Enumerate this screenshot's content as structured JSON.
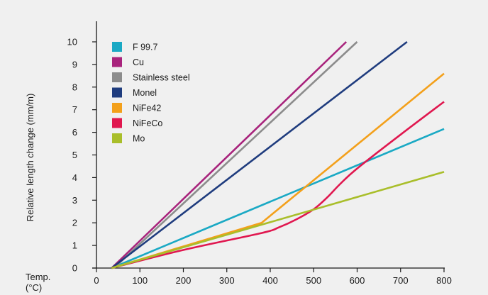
{
  "chart_data": {
    "type": "line",
    "title": "",
    "xlabel": "Temp. (°C)",
    "xlabel_lines": [
      "Temp.",
      "(°C)"
    ],
    "ylabel": "Relative length change (mm/m)",
    "xlim": [
      0,
      800
    ],
    "ylim": [
      0,
      10
    ],
    "xticks": [
      0,
      100,
      200,
      300,
      400,
      500,
      600,
      700,
      800
    ],
    "yticks": [
      0,
      1,
      2,
      3,
      4,
      5,
      6,
      7,
      8,
      9,
      10
    ],
    "grid": false,
    "legend_position": "top-left",
    "series": [
      {
        "name": "F 99.7",
        "color": "#1aa9c4",
        "points": [
          [
            35,
            0
          ],
          [
            800,
            6.15
          ]
        ]
      },
      {
        "name": "Cu",
        "color": "#a8237c",
        "points": [
          [
            35,
            0
          ],
          [
            575,
            10
          ]
        ]
      },
      {
        "name": "Stainless steel",
        "color": "#8c8c8c",
        "points": [
          [
            40,
            0
          ],
          [
            600,
            10
          ]
        ]
      },
      {
        "name": "Monel",
        "color": "#1f3c7e",
        "points": [
          [
            35,
            0
          ],
          [
            715,
            10
          ]
        ]
      },
      {
        "name": "NiFe42",
        "color": "#f3a01b",
        "points": [
          [
            35,
            0
          ],
          [
            380,
            2.0
          ],
          [
            800,
            8.6
          ]
        ]
      },
      {
        "name": "NiFeCo",
        "color": "#e0174f",
        "points": [
          [
            35,
            0
          ],
          [
            200,
            0.8
          ],
          [
            380,
            1.55
          ],
          [
            420,
            1.8
          ],
          [
            460,
            2.15
          ],
          [
            500,
            2.6
          ],
          [
            530,
            3.1
          ],
          [
            560,
            3.7
          ],
          [
            600,
            4.4
          ],
          [
            700,
            5.9
          ],
          [
            800,
            7.35
          ]
        ]
      },
      {
        "name": "Mo",
        "color": "#a9be2a",
        "points": [
          [
            35,
            0
          ],
          [
            800,
            4.25
          ]
        ]
      }
    ]
  }
}
